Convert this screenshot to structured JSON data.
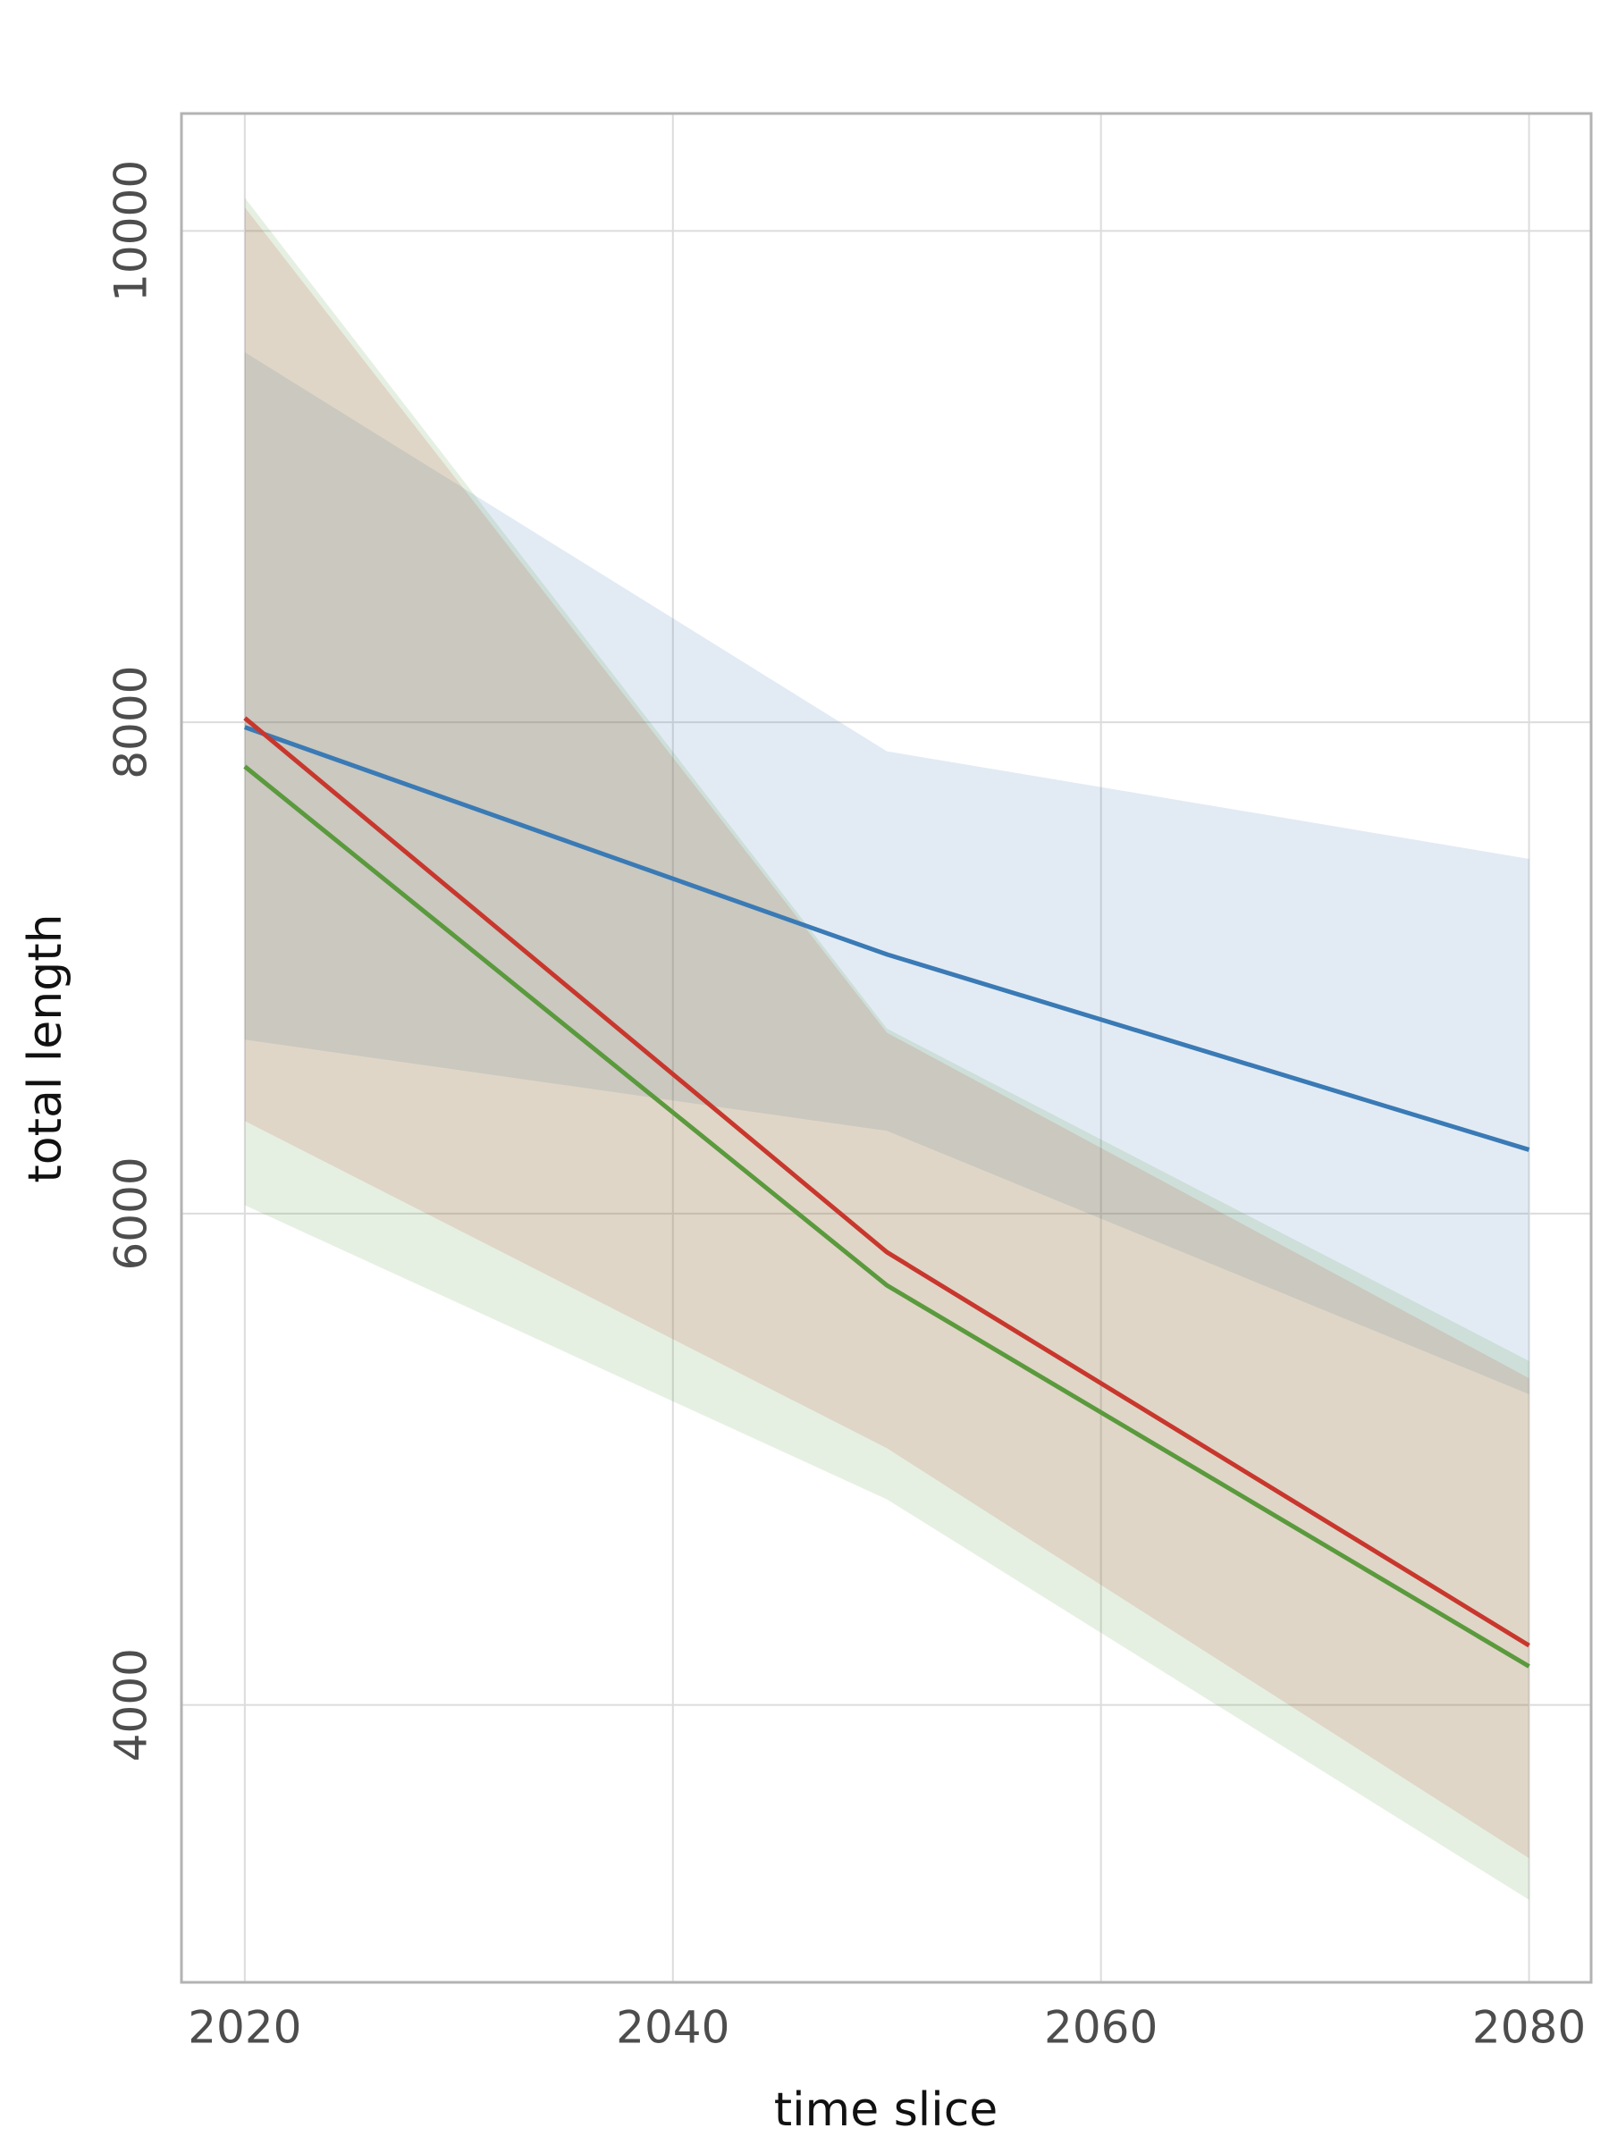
{
  "chart_data": {
    "type": "line",
    "x_label": "time slice",
    "y_label": "total length",
    "x": [
      2020,
      2050,
      2080
    ],
    "series": [
      {
        "color": "#3a7ab5",
        "values": [
          7980,
          7055,
          6260
        ],
        "lower": [
          6708,
          6337,
          5265
        ],
        "upper": [
          9506,
          7882,
          7444
        ]
      },
      {
        "color": "#c8372d",
        "values": [
          8017,
          5843,
          4242
        ],
        "lower": [
          6377,
          5045,
          3376
        ],
        "upper": [
          10096,
          6736,
          5330
        ]
      },
      {
        "color": "#5a9a3d",
        "values": [
          7820,
          5708,
          4157
        ],
        "lower": [
          6034,
          4837,
          3207
        ],
        "upper": [
          10135,
          6753,
          5400
        ]
      }
    ],
    "band_opacity": 0.15,
    "xlim": [
      2017.04,
      2082.9
    ],
    "xticks": [
      2020,
      2040,
      2060,
      2080
    ],
    "ylim": [
      2871,
      10478
    ],
    "yticks": [
      4000,
      6000,
      8000,
      10000
    ],
    "grid": true
  }
}
